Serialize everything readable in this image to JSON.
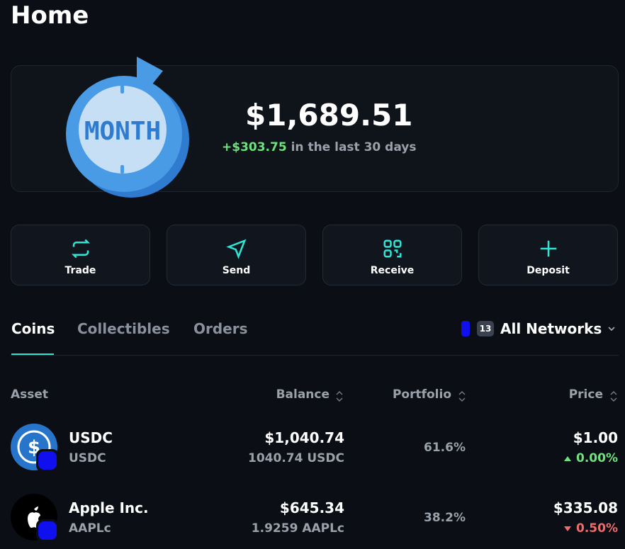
{
  "header": {
    "title": "Home"
  },
  "summary": {
    "badge": "MONTH",
    "total": "$1,689.51",
    "change": "+$303.75",
    "period": "in the last 30 days"
  },
  "actions": [
    "Trade",
    "Send",
    "Receive",
    "Deposit"
  ],
  "tabs": [
    "Coins",
    "Collectibles",
    "Orders"
  ],
  "network": {
    "count": "13",
    "label": "All Networks"
  },
  "table": {
    "headers": [
      "Asset",
      "Balance",
      "Portfolio",
      "Price"
    ],
    "rows": [
      {
        "name": "USDC",
        "symbol": "USDC",
        "balance": "$1,040.74",
        "amount": "1040.74 USDC",
        "portfolio": "61.6%",
        "price": "$1.00",
        "change": "0.00%"
      },
      {
        "name": "Apple Inc.",
        "symbol": "AAPLc",
        "balance": "$645.34",
        "amount": "1.9259 AAPLc",
        "portfolio": "38.2%",
        "price": "$335.08",
        "change": "0.50%"
      }
    ]
  }
}
